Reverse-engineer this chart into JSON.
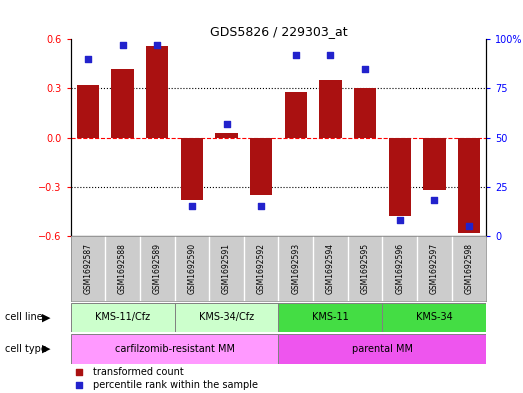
{
  "title": "GDS5826 / 229303_at",
  "samples": [
    "GSM1692587",
    "GSM1692588",
    "GSM1692589",
    "GSM1692590",
    "GSM1692591",
    "GSM1692592",
    "GSM1692593",
    "GSM1692594",
    "GSM1692595",
    "GSM1692596",
    "GSM1692597",
    "GSM1692598"
  ],
  "transformed_count": [
    0.32,
    0.42,
    0.56,
    -0.38,
    0.03,
    -0.35,
    0.28,
    0.35,
    0.3,
    -0.48,
    -0.32,
    -0.58
  ],
  "percentile_rank": [
    90,
    97,
    97,
    15,
    57,
    15,
    92,
    92,
    85,
    8,
    18,
    5
  ],
  "cell_line_groups": [
    {
      "label": "KMS-11/Cfz",
      "start": 0,
      "end": 3,
      "color": "#ccffcc"
    },
    {
      "label": "KMS-34/Cfz",
      "start": 3,
      "end": 6,
      "color": "#ccffcc"
    },
    {
      "label": "KMS-11",
      "start": 6,
      "end": 9,
      "color": "#44dd44"
    },
    {
      "label": "KMS-34",
      "start": 9,
      "end": 12,
      "color": "#44dd44"
    }
  ],
  "cell_type_groups": [
    {
      "label": "carfilzomib-resistant MM",
      "start": 0,
      "end": 6,
      "color": "#ff99ff"
    },
    {
      "label": "parental MM",
      "start": 6,
      "end": 12,
      "color": "#ee55ee"
    }
  ],
  "bar_color": "#aa1111",
  "dot_color": "#2222cc",
  "ylim": [
    -0.6,
    0.6
  ],
  "right_ylim": [
    0,
    100
  ],
  "yticks_left": [
    -0.6,
    -0.3,
    0.0,
    0.3,
    0.6
  ],
  "yticks_right": [
    0,
    25,
    50,
    75,
    100
  ],
  "hlines": [
    -0.3,
    0.0,
    0.3
  ],
  "hline_styles": [
    "dotted",
    "dashed",
    "dotted"
  ],
  "hline_colors": [
    "black",
    "red",
    "black"
  ],
  "legend_items": [
    {
      "label": "transformed count",
      "color": "#aa1111"
    },
    {
      "label": "percentile rank within the sample",
      "color": "#2222cc"
    }
  ],
  "sample_bg": "#cccccc",
  "fig_width": 5.23,
  "fig_height": 3.93,
  "fig_dpi": 100
}
